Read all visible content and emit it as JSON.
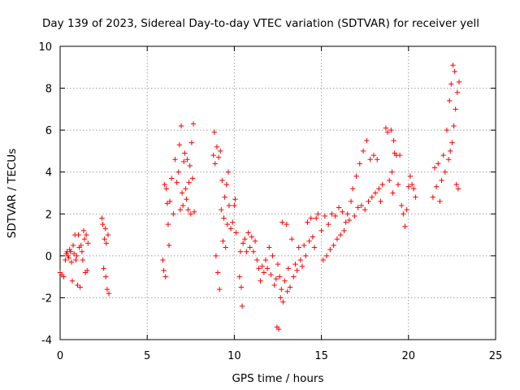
{
  "chart_data": {
    "type": "scatter",
    "title": "Day 139 of 2023, Sidereal Day-to-day VTEC variation (SDTVAR) for receiver yell",
    "xlabel": "GPS time / hours",
    "ylabel": "SDTVAR / TECUs",
    "xlim": [
      0,
      25
    ],
    "ylim": [
      -4,
      10
    ],
    "xticks": [
      "0",
      "5",
      "10",
      "15",
      "20",
      "25"
    ],
    "yticks": [
      "-4",
      "-2",
      "0",
      "2",
      "4",
      "6",
      "8",
      "10"
    ],
    "grid": true,
    "marker": "plus",
    "color": "#ff0000",
    "series": [
      {
        "name": "SDTVAR",
        "points": [
          [
            0.0,
            -0.8
          ],
          [
            0.1,
            -0.9
          ],
          [
            0.2,
            -1.0
          ],
          [
            0.3,
            -0.2
          ],
          [
            0.35,
            0.1
          ],
          [
            0.4,
            0.2
          ],
          [
            0.45,
            0.0
          ],
          [
            0.5,
            -0.1
          ],
          [
            0.55,
            0.3
          ],
          [
            0.6,
            0.2
          ],
          [
            0.65,
            -0.3
          ],
          [
            0.7,
            -1.2
          ],
          [
            0.75,
            0.5
          ],
          [
            0.8,
            0.1
          ],
          [
            0.85,
            1.0
          ],
          [
            0.9,
            -0.2
          ],
          [
            0.95,
            0.0
          ],
          [
            1.0,
            -1.4
          ],
          [
            1.05,
            1.0
          ],
          [
            1.1,
            0.4
          ],
          [
            1.15,
            -1.5
          ],
          [
            1.2,
            0.5
          ],
          [
            1.25,
            0.2
          ],
          [
            1.3,
            -0.2
          ],
          [
            1.35,
            1.2
          ],
          [
            1.4,
            0.8
          ],
          [
            1.45,
            -0.8
          ],
          [
            1.5,
            1.0
          ],
          [
            1.55,
            -0.7
          ],
          [
            1.6,
            0.6
          ],
          [
            2.4,
            1.8
          ],
          [
            2.45,
            1.5
          ],
          [
            2.5,
            -0.6
          ],
          [
            2.55,
            0.8
          ],
          [
            2.6,
            1.3
          ],
          [
            2.62,
            -1.0
          ],
          [
            2.65,
            0.6
          ],
          [
            2.7,
            -1.6
          ],
          [
            2.75,
            1.0
          ],
          [
            2.8,
            -1.8
          ],
          [
            5.9,
            -0.2
          ],
          [
            5.95,
            -0.7
          ],
          [
            6.0,
            3.4
          ],
          [
            6.05,
            -1.0
          ],
          [
            6.1,
            3.2
          ],
          [
            6.15,
            2.5
          ],
          [
            6.2,
            1.5
          ],
          [
            6.25,
            0.5
          ],
          [
            6.3,
            2.6
          ],
          [
            6.4,
            3.7
          ],
          [
            6.5,
            2.0
          ],
          [
            6.6,
            4.6
          ],
          [
            6.7,
            3.5
          ],
          [
            6.8,
            4.0
          ],
          [
            6.85,
            5.3
          ],
          [
            6.9,
            2.2
          ],
          [
            6.95,
            6.2
          ],
          [
            7.0,
            3.0
          ],
          [
            7.05,
            2.4
          ],
          [
            7.1,
            4.5
          ],
          [
            7.15,
            4.9
          ],
          [
            7.2,
            3.2
          ],
          [
            7.25,
            2.7
          ],
          [
            7.3,
            4.6
          ],
          [
            7.35,
            2.2
          ],
          [
            7.4,
            3.5
          ],
          [
            7.45,
            4.3
          ],
          [
            7.5,
            2.0
          ],
          [
            7.55,
            5.4
          ],
          [
            7.6,
            3.7
          ],
          [
            7.65,
            6.3
          ],
          [
            7.7,
            2.1
          ],
          [
            8.8,
            4.8
          ],
          [
            8.85,
            5.9
          ],
          [
            8.9,
            4.4
          ],
          [
            8.95,
            0.0
          ],
          [
            9.0,
            5.2
          ],
          [
            9.05,
            -0.8
          ],
          [
            9.1,
            4.7
          ],
          [
            9.15,
            -1.6
          ],
          [
            9.2,
            5.0
          ],
          [
            9.25,
            2.2
          ],
          [
            9.3,
            3.6
          ],
          [
            9.35,
            0.7
          ],
          [
            9.4,
            1.8
          ],
          [
            9.45,
            2.8
          ],
          [
            9.5,
            0.4
          ],
          [
            9.55,
            3.4
          ],
          [
            9.6,
            1.5
          ],
          [
            9.65,
            4.0
          ],
          [
            9.7,
            2.4
          ],
          [
            9.8,
            1.3
          ],
          [
            9.9,
            1.6
          ],
          [
            10.0,
            2.4
          ],
          [
            10.05,
            2.7
          ],
          [
            10.1,
            1.1
          ],
          [
            10.3,
            -1.0
          ],
          [
            10.35,
            0.2
          ],
          [
            10.4,
            -1.5
          ],
          [
            10.45,
            -2.4
          ],
          [
            10.5,
            0.6
          ],
          [
            10.6,
            0.8
          ],
          [
            10.7,
            0.2
          ],
          [
            10.8,
            1.1
          ],
          [
            10.9,
            0.4
          ],
          [
            11.0,
            0.9
          ],
          [
            11.1,
            0.2
          ],
          [
            11.2,
            0.7
          ],
          [
            11.3,
            -0.2
          ],
          [
            11.4,
            -0.6
          ],
          [
            11.5,
            -1.2
          ],
          [
            11.6,
            -0.5
          ],
          [
            11.7,
            -0.8
          ],
          [
            11.8,
            -0.2
          ],
          [
            11.9,
            -0.6
          ],
          [
            12.0,
            0.4
          ],
          [
            12.1,
            -0.9
          ],
          [
            12.2,
            0.0
          ],
          [
            12.3,
            -1.4
          ],
          [
            12.4,
            -1.1
          ],
          [
            12.45,
            -3.4
          ],
          [
            12.5,
            -0.4
          ],
          [
            12.55,
            -3.5
          ],
          [
            12.6,
            -1.0
          ],
          [
            12.65,
            -2.0
          ],
          [
            12.7,
            -1.6
          ],
          [
            12.75,
            1.6
          ],
          [
            12.8,
            -2.2
          ],
          [
            12.9,
            -1.2
          ],
          [
            13.0,
            1.5
          ],
          [
            13.05,
            -1.7
          ],
          [
            13.1,
            -0.6
          ],
          [
            13.2,
            -1.5
          ],
          [
            13.3,
            0.8
          ],
          [
            13.4,
            -1.0
          ],
          [
            13.5,
            -0.4
          ],
          [
            13.6,
            -0.7
          ],
          [
            13.7,
            0.4
          ],
          [
            13.8,
            -0.2
          ],
          [
            13.9,
            -0.5
          ],
          [
            14.0,
            0.5
          ],
          [
            14.1,
            0.0
          ],
          [
            14.2,
            1.6
          ],
          [
            14.3,
            0.7
          ],
          [
            14.4,
            1.8
          ],
          [
            14.5,
            0.9
          ],
          [
            14.6,
            0.4
          ],
          [
            14.7,
            1.8
          ],
          [
            14.8,
            2.0
          ],
          [
            15.0,
            1.2
          ],
          [
            15.1,
            -0.2
          ],
          [
            15.2,
            1.9
          ],
          [
            15.3,
            0.0
          ],
          [
            15.4,
            1.5
          ],
          [
            15.5,
            0.3
          ],
          [
            15.6,
            2.0
          ],
          [
            15.7,
            0.5
          ],
          [
            15.8,
            1.9
          ],
          [
            15.9,
            0.8
          ],
          [
            16.0,
            2.3
          ],
          [
            16.1,
            1.0
          ],
          [
            16.2,
            2.1
          ],
          [
            16.3,
            1.2
          ],
          [
            16.4,
            1.6
          ],
          [
            16.5,
            2.0
          ],
          [
            16.6,
            1.7
          ],
          [
            16.7,
            2.6
          ],
          [
            16.8,
            3.2
          ],
          [
            16.9,
            1.9
          ],
          [
            17.0,
            3.8
          ],
          [
            17.1,
            2.3
          ],
          [
            17.2,
            4.4
          ],
          [
            17.3,
            2.4
          ],
          [
            17.4,
            5.0
          ],
          [
            17.5,
            2.2
          ],
          [
            17.6,
            5.5
          ],
          [
            17.7,
            2.6
          ],
          [
            17.8,
            4.6
          ],
          [
            17.9,
            2.8
          ],
          [
            18.0,
            4.8
          ],
          [
            18.1,
            3.0
          ],
          [
            18.2,
            4.6
          ],
          [
            18.3,
            3.2
          ],
          [
            18.4,
            2.6
          ],
          [
            18.5,
            3.4
          ],
          [
            18.7,
            6.1
          ],
          [
            18.8,
            5.9
          ],
          [
            18.9,
            3.6
          ],
          [
            19.0,
            6.0
          ],
          [
            19.05,
            4.0
          ],
          [
            19.1,
            3.0
          ],
          [
            19.15,
            5.5
          ],
          [
            19.2,
            4.9
          ],
          [
            19.3,
            4.8
          ],
          [
            19.4,
            3.4
          ],
          [
            19.5,
            4.8
          ],
          [
            19.6,
            2.4
          ],
          [
            19.7,
            2.0
          ],
          [
            19.8,
            1.4
          ],
          [
            19.9,
            2.2
          ],
          [
            20.0,
            3.3
          ],
          [
            20.1,
            3.8
          ],
          [
            20.2,
            3.4
          ],
          [
            20.3,
            3.2
          ],
          [
            20.4,
            2.8
          ],
          [
            21.4,
            2.8
          ],
          [
            21.5,
            4.2
          ],
          [
            21.6,
            3.3
          ],
          [
            21.7,
            4.4
          ],
          [
            21.8,
            2.6
          ],
          [
            21.9,
            3.6
          ],
          [
            22.0,
            4.8
          ],
          [
            22.1,
            4.0
          ],
          [
            22.2,
            6.0
          ],
          [
            22.3,
            4.6
          ],
          [
            22.35,
            7.4
          ],
          [
            22.4,
            5.0
          ],
          [
            22.45,
            8.2
          ],
          [
            22.5,
            5.4
          ],
          [
            22.55,
            9.1
          ],
          [
            22.6,
            6.2
          ],
          [
            22.65,
            8.8
          ],
          [
            22.7,
            7.0
          ],
          [
            22.75,
            3.4
          ],
          [
            22.8,
            7.8
          ],
          [
            22.85,
            3.2
          ],
          [
            22.9,
            8.3
          ]
        ]
      }
    ]
  }
}
